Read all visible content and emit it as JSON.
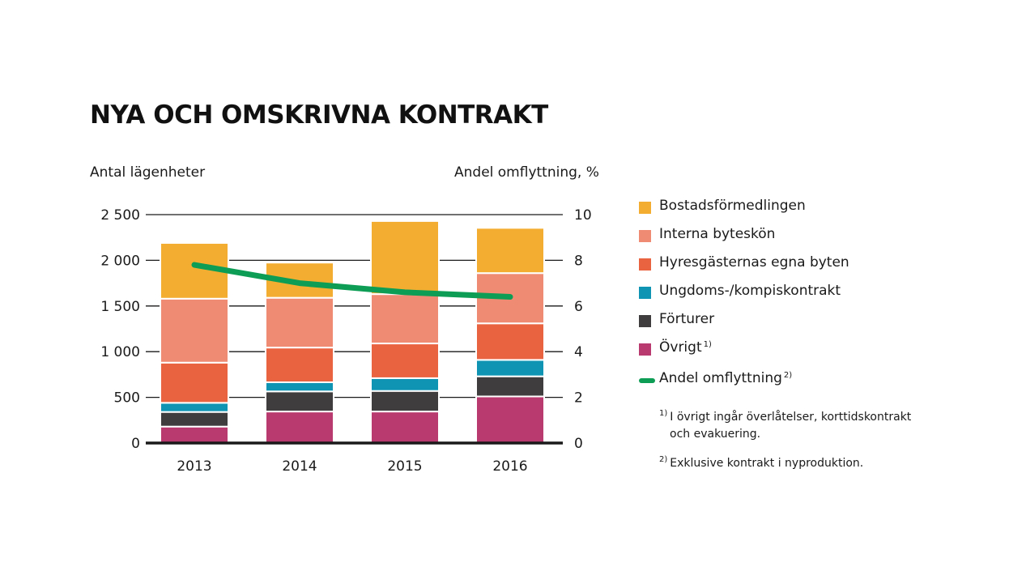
{
  "title": "NYA OCH OMSKRIVNA KONTRAKT",
  "left_axis_title": "Antal lägenheter",
  "right_axis_title": "Andel omflyttning, %",
  "chart_data": {
    "type": "bar",
    "stacked": true,
    "categories": [
      "2013",
      "2014",
      "2015",
      "2016"
    ],
    "ylim": [
      0,
      2500
    ],
    "y_ticks": [
      0,
      500,
      1000,
      1500,
      2000,
      2500
    ],
    "y_tick_labels": [
      "0",
      "500",
      "1 000",
      "1 500",
      "2 000",
      "2 500"
    ],
    "y2lim": [
      0,
      10
    ],
    "y2_ticks": [
      0,
      2,
      4,
      6,
      8,
      10
    ],
    "y2_tick_labels": [
      "0",
      "2",
      "4",
      "6",
      "8",
      "10"
    ],
    "grid": true,
    "series": [
      {
        "name": "Övrigt",
        "note": "1)",
        "color": "#b83a6e",
        "values": [
          180,
          345,
          345,
          510
        ]
      },
      {
        "name": "Förturer",
        "color": "#3f3d3e",
        "values": [
          160,
          220,
          225,
          220
        ]
      },
      {
        "name": "Ungdoms-/kompiskontrakt",
        "color": "#0f95b3",
        "values": [
          100,
          100,
          140,
          180
        ]
      },
      {
        "name": "Hyresgästernas egna byten",
        "color": "#ea6340",
        "values": [
          440,
          380,
          380,
          400
        ]
      },
      {
        "name": "Interna byteskön",
        "color": "#f08b73",
        "values": [
          700,
          545,
          540,
          550
        ]
      },
      {
        "name": "Bostadsförmedlingen",
        "color": "#f3ae32",
        "values": [
          610,
          385,
          800,
          495
        ]
      }
    ],
    "line_series": {
      "name": "Andel omflyttning",
      "note": "2)",
      "axis": "right",
      "color": "#0e9d55",
      "values": [
        7.8,
        7.0,
        6.6,
        6.4
      ]
    },
    "legend_position": "right"
  },
  "legend": [
    {
      "label": "Bostadsförmedlingen",
      "sup": "",
      "color": "#f3ae32",
      "kind": "box"
    },
    {
      "label": "Interna byteskön",
      "sup": "",
      "color": "#f08b73",
      "kind": "box"
    },
    {
      "label": "Hyresgästernas egna byten",
      "sup": "",
      "color": "#ea6340",
      "kind": "box"
    },
    {
      "label": "Ungdoms-/kompiskontrakt",
      "sup": "",
      "color": "#0f95b3",
      "kind": "box"
    },
    {
      "label": "Förturer",
      "sup": "",
      "color": "#3f3d3e",
      "kind": "box"
    },
    {
      "label": "Övrigt",
      "sup": "1)",
      "color": "#b83a6e",
      "kind": "box"
    },
    {
      "label": "Andel omflyttning",
      "sup": "2)",
      "color": "#0e9d55",
      "kind": "line"
    }
  ],
  "notes": [
    {
      "marker": "1)",
      "text_line1": "I övrigt ingår överlåtelser, korttidskontrakt",
      "text_line2": "och evakuering."
    },
    {
      "marker": "2)",
      "text_line1": "Exklusive kontrakt i nyproduktion.",
      "text_line2": ""
    }
  ]
}
